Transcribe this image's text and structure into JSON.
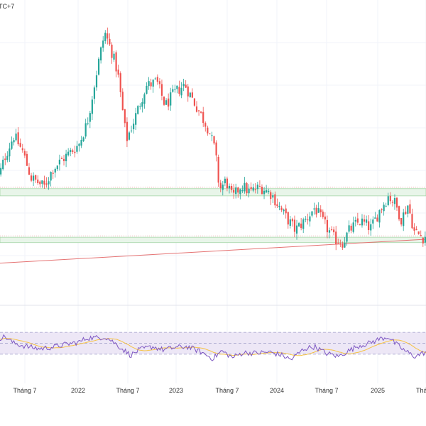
{
  "header": {
    "timezone_fragment": "TC+7"
  },
  "colors": {
    "up": "#26a69a",
    "down": "#ef5350",
    "zone_fill": "#e8f5e9",
    "zone_border": "#a5d6a7",
    "trendline": "#e57373",
    "rsi_line": "#7e57c2",
    "rsi_ma": "#f6c343",
    "rsi_band": "#ede7f6",
    "rsi_band_border": "#9e9ec8",
    "grid": "#f0f3fa"
  },
  "chart_data": [
    {
      "type": "candlestick",
      "x_axis": {
        "tick_labels": [
          "Tháng 7",
          "2022",
          "Tháng 7",
          "2023",
          "Tháng 7",
          "2024",
          "Tháng 7",
          "2025",
          "Thá"
        ]
      },
      "price_anchors": [
        {
          "t": 0,
          "v": 150
        },
        {
          "t": 0.02,
          "v": 182
        },
        {
          "t": 0.04,
          "v": 205
        },
        {
          "t": 0.06,
          "v": 188
        },
        {
          "t": 0.08,
          "v": 158
        },
        {
          "t": 0.11,
          "v": 148
        },
        {
          "t": 0.13,
          "v": 168
        },
        {
          "t": 0.16,
          "v": 182
        },
        {
          "t": 0.19,
          "v": 195
        },
        {
          "t": 0.21,
          "v": 220
        },
        {
          "t": 0.235,
          "v": 285
        },
        {
          "t": 0.25,
          "v": 320
        },
        {
          "t": 0.265,
          "v": 300
        },
        {
          "t": 0.28,
          "v": 275
        },
        {
          "t": 0.3,
          "v": 200
        },
        {
          "t": 0.32,
          "v": 225
        },
        {
          "t": 0.345,
          "v": 260
        },
        {
          "t": 0.37,
          "v": 265
        },
        {
          "t": 0.39,
          "v": 238
        },
        {
          "t": 0.41,
          "v": 252
        },
        {
          "t": 0.435,
          "v": 262
        },
        {
          "t": 0.45,
          "v": 248
        },
        {
          "t": 0.47,
          "v": 230
        },
        {
          "t": 0.49,
          "v": 212
        },
        {
          "t": 0.505,
          "v": 188
        },
        {
          "t": 0.515,
          "v": 145
        },
        {
          "t": 0.53,
          "v": 155
        },
        {
          "t": 0.545,
          "v": 135
        },
        {
          "t": 0.565,
          "v": 150
        },
        {
          "t": 0.585,
          "v": 142
        },
        {
          "t": 0.61,
          "v": 148
        },
        {
          "t": 0.635,
          "v": 140
        },
        {
          "t": 0.66,
          "v": 120
        },
        {
          "t": 0.69,
          "v": 100
        },
        {
          "t": 0.715,
          "v": 112
        },
        {
          "t": 0.735,
          "v": 125
        },
        {
          "t": 0.755,
          "v": 108
        },
        {
          "t": 0.78,
          "v": 90
        },
        {
          "t": 0.8,
          "v": 86
        },
        {
          "t": 0.815,
          "v": 100
        },
        {
          "t": 0.84,
          "v": 110
        },
        {
          "t": 0.865,
          "v": 102
        },
        {
          "t": 0.885,
          "v": 122
        },
        {
          "t": 0.905,
          "v": 138
        },
        {
          "t": 0.92,
          "v": 130
        },
        {
          "t": 0.935,
          "v": 112
        },
        {
          "t": 0.95,
          "v": 128
        },
        {
          "t": 0.965,
          "v": 98
        },
        {
          "t": 0.985,
          "v": 92
        },
        {
          "t": 1,
          "v": 96
        }
      ],
      "price_range": [
        40,
        340
      ],
      "zones": [
        {
          "from": 138,
          "to": 146
        },
        {
          "from": 86,
          "to": 92
        }
      ],
      "trendline": [
        {
          "t": 0,
          "v": 63
        },
        {
          "t": 1,
          "v": 90
        }
      ],
      "grid": true,
      "legend": "none"
    },
    {
      "type": "line",
      "name": "",
      "rsi_anchors": [
        {
          "t": 0,
          "v": 58
        },
        {
          "t": 0.02,
          "v": 62
        },
        {
          "t": 0.04,
          "v": 50
        },
        {
          "t": 0.07,
          "v": 44
        },
        {
          "t": 0.1,
          "v": 40
        },
        {
          "t": 0.13,
          "v": 43
        },
        {
          "t": 0.16,
          "v": 48
        },
        {
          "t": 0.19,
          "v": 52
        },
        {
          "t": 0.21,
          "v": 60
        },
        {
          "t": 0.235,
          "v": 60
        },
        {
          "t": 0.25,
          "v": 62
        },
        {
          "t": 0.265,
          "v": 55
        },
        {
          "t": 0.29,
          "v": 40
        },
        {
          "t": 0.31,
          "v": 28
        },
        {
          "t": 0.33,
          "v": 38
        },
        {
          "t": 0.36,
          "v": 44
        },
        {
          "t": 0.385,
          "v": 38
        },
        {
          "t": 0.41,
          "v": 42
        },
        {
          "t": 0.44,
          "v": 44
        },
        {
          "t": 0.47,
          "v": 35
        },
        {
          "t": 0.5,
          "v": 22
        },
        {
          "t": 0.52,
          "v": 36
        },
        {
          "t": 0.545,
          "v": 24
        },
        {
          "t": 0.57,
          "v": 33
        },
        {
          "t": 0.6,
          "v": 32
        },
        {
          "t": 0.63,
          "v": 34
        },
        {
          "t": 0.66,
          "v": 28
        },
        {
          "t": 0.68,
          "v": 20
        },
        {
          "t": 0.71,
          "v": 40
        },
        {
          "t": 0.735,
          "v": 44
        },
        {
          "t": 0.76,
          "v": 32
        },
        {
          "t": 0.79,
          "v": 26
        },
        {
          "t": 0.81,
          "v": 35
        },
        {
          "t": 0.835,
          "v": 45
        },
        {
          "t": 0.86,
          "v": 50
        },
        {
          "t": 0.885,
          "v": 58
        },
        {
          "t": 0.905,
          "v": 62
        },
        {
          "t": 0.92,
          "v": 50
        },
        {
          "t": 0.94,
          "v": 38
        },
        {
          "t": 0.965,
          "v": 26
        },
        {
          "t": 0.985,
          "v": 32
        },
        {
          "t": 1,
          "v": 36
        }
      ],
      "rsi_range": [
        0,
        100
      ],
      "bands": [
        30,
        50,
        70
      ]
    }
  ]
}
